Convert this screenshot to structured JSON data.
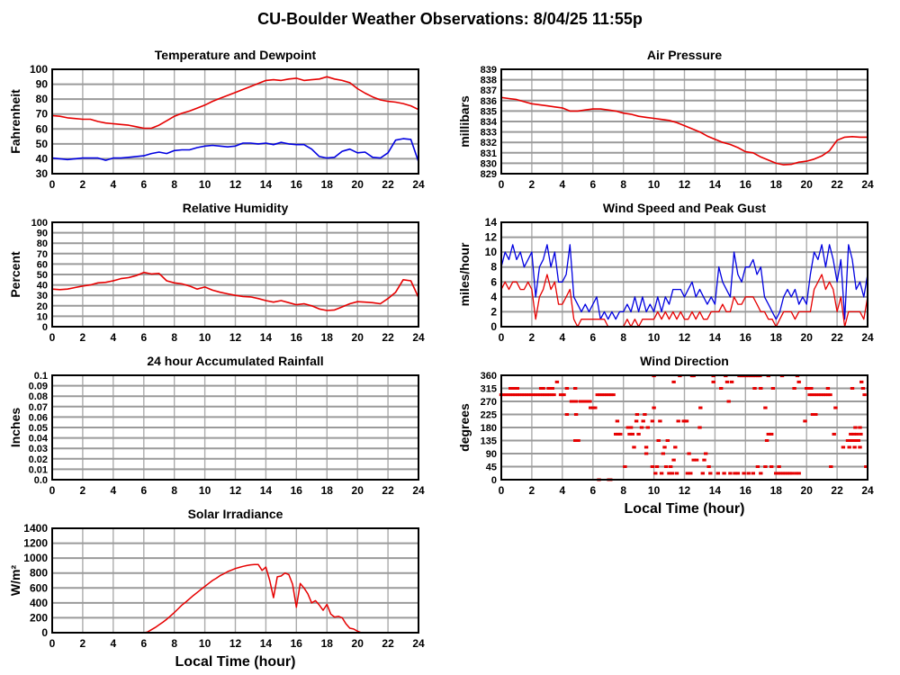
{
  "page_title": "CU-Boulder Weather Observations: 8/04/25 11:55p",
  "colors": {
    "red": "#e60000",
    "blue": "#0000e0",
    "grid_h": "#9a9a9a",
    "grid_v": "#ababab",
    "axis": "#000000"
  },
  "x_axis": {
    "min": 0,
    "max": 24,
    "ticks": [
      0,
      2,
      4,
      6,
      8,
      10,
      12,
      14,
      16,
      18,
      20,
      22,
      24
    ]
  },
  "chart_data": [
    {
      "id": "temperature-dewpoint",
      "type": "line",
      "title": "Temperature and Dewpoint",
      "ylabel": "Fahrenheit",
      "xlabel": "",
      "ylim": [
        30,
        100
      ],
      "yticks": [
        30,
        40,
        50,
        60,
        70,
        80,
        90,
        100
      ],
      "ytick_labels": [
        "30",
        "40",
        "50",
        "60",
        "70",
        "80",
        "90",
        "100"
      ],
      "series": [
        {
          "name": "temperature",
          "color": "#e60000",
          "width": 1.6,
          "x_start": 0,
          "x_step": 0.5,
          "values": [
            69,
            68.5,
            67.5,
            67,
            66.5,
            66.5,
            65,
            64,
            63.5,
            63,
            62.5,
            61.5,
            60.5,
            60.5,
            62.5,
            65.5,
            68.5,
            70.5,
            72,
            74,
            76,
            78.5,
            80.5,
            82.5,
            84.5,
            86.5,
            88.5,
            90.5,
            92.5,
            93,
            92.5,
            93.5,
            94,
            92.5,
            93,
            93.5,
            95,
            93.5,
            92.5,
            91,
            87,
            84,
            81.5,
            79.5,
            78.5,
            78,
            77,
            75.5,
            73
          ]
        },
        {
          "name": "dewpoint",
          "color": "#0000e0",
          "width": 1.6,
          "x_start": 0,
          "x_step": 0.5,
          "values": [
            40.5,
            40,
            39.5,
            40,
            40.5,
            40.5,
            40.5,
            39,
            40.5,
            40.5,
            41,
            41.5,
            42,
            43.5,
            44.5,
            43.5,
            45.5,
            46,
            46,
            47.5,
            48.5,
            49,
            48.5,
            48,
            48.5,
            50.5,
            50.5,
            50,
            50.5,
            49.5,
            51,
            50,
            49.5,
            49.5,
            46.5,
            41.5,
            40.5,
            41,
            45,
            46.5,
            44,
            44.5,
            41,
            40.5,
            44,
            52.5,
            53.5,
            53,
            38
          ]
        }
      ]
    },
    {
      "id": "air-pressure",
      "type": "line",
      "title": "Air Pressure",
      "ylabel": "millibars",
      "xlabel": "",
      "ylim": [
        829,
        839
      ],
      "yticks": [
        829,
        830,
        831,
        832,
        833,
        834,
        835,
        836,
        837,
        838,
        839
      ],
      "ytick_labels": [
        "829",
        "830",
        "831",
        "832",
        "833",
        "834",
        "835",
        "836",
        "837",
        "838",
        "839"
      ],
      "series": [
        {
          "name": "pressure",
          "color": "#e60000",
          "width": 1.6,
          "x_start": 0,
          "x_step": 0.5,
          "values": [
            836.3,
            836.2,
            836.1,
            835.9,
            835.7,
            835.6,
            835.5,
            835.4,
            835.3,
            835.0,
            835.0,
            835.1,
            835.2,
            835.2,
            835.1,
            835.0,
            834.8,
            834.7,
            834.5,
            834.4,
            834.3,
            834.2,
            834.1,
            833.9,
            833.6,
            833.3,
            833.0,
            832.6,
            832.3,
            832.0,
            831.8,
            831.5,
            831.1,
            831.0,
            830.6,
            830.3,
            830.0,
            829.85,
            829.9,
            830.1,
            830.2,
            830.4,
            830.7,
            831.2,
            832.2,
            832.5,
            832.55,
            832.5,
            832.5
          ]
        }
      ]
    },
    {
      "id": "relative-humidity",
      "type": "line",
      "title": "Relative Humidity",
      "ylabel": "Percent",
      "xlabel": "",
      "ylim": [
        0,
        100
      ],
      "yticks": [
        0,
        10,
        20,
        30,
        40,
        50,
        60,
        70,
        80,
        90,
        100
      ],
      "ytick_labels": [
        "0",
        "10",
        "20",
        "30",
        "40",
        "50",
        "60",
        "70",
        "80",
        "90",
        "100"
      ],
      "series": [
        {
          "name": "humidity",
          "color": "#e60000",
          "width": 1.6,
          "x_start": 0,
          "x_step": 0.5,
          "values": [
            36,
            35.5,
            36,
            37.5,
            39,
            40,
            42,
            42.5,
            44,
            46,
            47,
            49,
            52,
            50.5,
            51,
            44,
            42,
            41,
            39,
            36,
            38,
            35,
            33,
            31.5,
            30,
            29,
            28.5,
            27,
            25,
            23.5,
            25,
            23,
            21,
            22,
            20,
            17,
            15.5,
            16,
            19,
            22,
            24,
            23.5,
            23,
            22,
            27,
            33,
            45,
            44,
            28
          ]
        }
      ]
    },
    {
      "id": "wind-speed-gust",
      "type": "line",
      "title": "Wind Speed and Peak Gust",
      "ylabel": "miles/hour",
      "xlabel": "",
      "ylim": [
        0,
        14
      ],
      "yticks": [
        0,
        2,
        4,
        6,
        8,
        10,
        12,
        14
      ],
      "ytick_labels": [
        "0",
        "2",
        "4",
        "6",
        "8",
        "10",
        "12",
        "14"
      ],
      "series": [
        {
          "name": "peak-gust",
          "color": "#0000e0",
          "width": 1.3,
          "x_start": 0,
          "x_step": 0.25,
          "values": [
            8,
            10,
            9,
            11,
            9,
            10,
            8,
            9,
            10,
            4,
            8,
            9,
            11,
            8,
            10,
            6,
            6,
            7,
            11,
            4,
            3,
            2,
            3,
            2,
            3,
            4,
            1,
            2,
            1,
            2,
            1,
            2,
            2,
            3,
            2,
            4,
            2,
            4,
            2,
            3,
            2,
            4,
            2,
            4,
            3,
            5,
            5,
            5,
            4,
            5,
            6,
            4,
            5,
            4,
            3,
            4,
            3,
            8,
            6,
            5,
            4,
            10,
            7,
            6,
            8,
            8,
            9,
            7,
            8,
            4,
            3,
            2,
            1,
            2,
            4,
            5,
            4,
            5,
            3,
            4,
            3,
            7,
            10,
            9,
            11,
            8,
            11,
            9,
            6,
            9,
            1,
            11,
            9,
            5,
            6,
            4,
            7
          ]
        },
        {
          "name": "wind-speed",
          "color": "#e60000",
          "width": 1.3,
          "x_start": 0,
          "x_step": 0.25,
          "values": [
            5,
            6,
            5,
            6,
            6,
            5,
            5,
            6,
            5,
            1,
            4,
            5,
            7,
            5,
            6,
            3,
            3,
            4,
            5,
            1,
            0,
            1,
            1,
            1,
            1,
            1,
            1,
            1,
            0,
            0,
            0,
            0,
            0,
            1,
            0,
            1,
            0,
            1,
            1,
            1,
            1,
            2,
            1,
            2,
            1,
            2,
            1,
            2,
            1,
            1,
            2,
            1,
            2,
            1,
            1,
            2,
            2,
            2,
            3,
            2,
            2,
            4,
            3,
            3,
            4,
            4,
            4,
            3,
            2,
            2,
            1,
            1,
            0,
            1,
            2,
            2,
            2,
            1,
            2,
            2,
            2,
            2,
            5,
            6,
            7,
            5,
            6,
            5,
            2,
            4,
            0,
            2,
            2,
            2,
            2,
            1,
            4
          ]
        }
      ]
    },
    {
      "id": "accumulated-rainfall",
      "type": "line",
      "title": "24 hour Accumulated Rainfall",
      "ylabel": "Inches",
      "xlabel": "",
      "ylim": [
        0,
        0.1
      ],
      "yticks": [
        0,
        0.01,
        0.02,
        0.03,
        0.04,
        0.05,
        0.06,
        0.07,
        0.08,
        0.09,
        0.1
      ],
      "ytick_labels": [
        "0.0",
        "0.01",
        "0.02",
        "0.03",
        "0.04",
        "0.05",
        "0.06",
        "0.07",
        "0.08",
        "0.09",
        "0.1"
      ],
      "series": [
        {
          "name": "rainfall",
          "color": "#cc0000",
          "width": 2,
          "x_start": 0,
          "x_step": 24,
          "values": [
            0,
            0
          ]
        }
      ]
    },
    {
      "id": "wind-direction",
      "type": "scatter",
      "title": "Wind Direction",
      "ylabel": "degrees",
      "xlabel": "Local Time (hour)",
      "ylim": [
        0,
        360
      ],
      "yticks": [
        0,
        45,
        90,
        135,
        180,
        225,
        270,
        315,
        360
      ],
      "ytick_labels": [
        "0",
        "45",
        "90",
        "135",
        "180",
        "225",
        "270",
        "315",
        "360"
      ],
      "marker_color": "#e60000",
      "points_by_degree": [
        {
          "deg": 358,
          "x": [
            10.0,
            11.7,
            12.5,
            12.6,
            13.9,
            14.7,
            15.6,
            15.75,
            15.9,
            16.05,
            16.2,
            16.35,
            16.5,
            16.65,
            16.8,
            16.95,
            17.5,
            18.4,
            19.4
          ]
        },
        {
          "deg": 337,
          "x": [
            3.65,
            11.3,
            13.9,
            14.8,
            15.1,
            19.5,
            23.6
          ]
        },
        {
          "deg": 315,
          "x": [
            0.6,
            0.75,
            0.95,
            1.05,
            2.6,
            2.75,
            3.1,
            3.2,
            3.35,
            4.3,
            4.85,
            14.4,
            16.6,
            17.0,
            17.8,
            19.2,
            20.0,
            20.15,
            20.3,
            21.4,
            23.0,
            23.7
          ]
        },
        {
          "deg": 293,
          "x": [
            0,
            0.15,
            0.3,
            0.45,
            0.6,
            0.75,
            0.9,
            1.05,
            1.2,
            1.35,
            1.5,
            1.65,
            1.8,
            1.95,
            2.1,
            2.25,
            2.4,
            2.55,
            2.7,
            2.85,
            3.0,
            3.15,
            3.3,
            3.45,
            3.9,
            4.0,
            4.1,
            6.3,
            6.45,
            6.6,
            6.75,
            6.9,
            7.05,
            7.2,
            7.35,
            20.2,
            20.35,
            20.5,
            20.65,
            20.8,
            20.95,
            21.1,
            21.25,
            21.4,
            21.55,
            23.8
          ]
        },
        {
          "deg": 270,
          "x": [
            4.6,
            4.75,
            4.9,
            5.2,
            5.35,
            5.5,
            5.65,
            5.8,
            14.9
          ]
        },
        {
          "deg": 248,
          "x": [
            5.85,
            6.0,
            6.15,
            10.0,
            13.05,
            17.3,
            21.9
          ]
        },
        {
          "deg": 225,
          "x": [
            4.3,
            4.9,
            8.9,
            9.4,
            20.4,
            20.6
          ]
        },
        {
          "deg": 202,
          "x": [
            7.6,
            8.85,
            9.3,
            9.9,
            10.4,
            11.6,
            11.95,
            12.05,
            12.15,
            19.9
          ]
        },
        {
          "deg": 180,
          "x": [
            8.3,
            8.5,
            9.2,
            9.6,
            13.0,
            23.2,
            23.5
          ]
        },
        {
          "deg": 157,
          "x": [
            7.5,
            7.65,
            7.8,
            8.4,
            8.6,
            9.0,
            17.5,
            17.7,
            21.8,
            22.9,
            23.1,
            23.3,
            23.55
          ]
        },
        {
          "deg": 135,
          "x": [
            4.85,
            4.95,
            5.05,
            10.3,
            10.9,
            17.4,
            22.7,
            22.8,
            22.9,
            23.0,
            23.2,
            23.4
          ]
        },
        {
          "deg": 112,
          "x": [
            8.7,
            9.5,
            10.7,
            11.4,
            22.4,
            22.8,
            23.15,
            23.5
          ]
        },
        {
          "deg": 90,
          "x": [
            9.5,
            10.6,
            12.3,
            13.4
          ]
        },
        {
          "deg": 68,
          "x": [
            11.3,
            12.6,
            12.8,
            13.3
          ]
        },
        {
          "deg": 45,
          "x": [
            8.1,
            9.9,
            10.2,
            10.8,
            11.1,
            13.6,
            16.8,
            17.3,
            17.7,
            18.2,
            21.6,
            23.9
          ]
        },
        {
          "deg": 22,
          "x": [
            10.1,
            10.5,
            11.0,
            11.2,
            11.5,
            12.2,
            12.4,
            13.2,
            13.7,
            14.2,
            14.6,
            15.0,
            15.3,
            15.5,
            15.9,
            16.2,
            16.5,
            17.0,
            18.0,
            18.15,
            18.3,
            18.45,
            18.6,
            18.75,
            18.9,
            19.05,
            19.3,
            19.5
          ]
        },
        {
          "deg": 0,
          "x": [
            6.4,
            7.05,
            7.15
          ]
        }
      ]
    },
    {
      "id": "solar-irradiance",
      "type": "line",
      "title": "Solar Irradiance",
      "ylabel": "W/m²",
      "xlabel": "Local Time (hour)",
      "ylim": [
        0,
        1400
      ],
      "yticks": [
        0,
        200,
        400,
        600,
        800,
        1000,
        1200,
        1400
      ],
      "ytick_labels": [
        "0",
        "200",
        "400",
        "600",
        "800",
        "1000",
        "1200",
        "1400"
      ],
      "series": [
        {
          "name": "irradiance",
          "color": "#e60000",
          "width": 1.5,
          "x_start": 0,
          "x_step": 0.25,
          "values": [
            0,
            0,
            0,
            0,
            0,
            0,
            0,
            0,
            0,
            0,
            0,
            0,
            0,
            0,
            0,
            0,
            0,
            0,
            0,
            0,
            0,
            0,
            0,
            0,
            0,
            10,
            40,
            70,
            105,
            140,
            180,
            225,
            270,
            320,
            370,
            410,
            455,
            500,
            540,
            580,
            620,
            660,
            700,
            730,
            765,
            790,
            820,
            840,
            860,
            875,
            890,
            900,
            910,
            915,
            915,
            835,
            880,
            700,
            470,
            750,
            760,
            800,
            780,
            650,
            340,
            660,
            600,
            520,
            400,
            430,
            370,
            300,
            380,
            250,
            210,
            220,
            200,
            120,
            60,
            50,
            20,
            0,
            0,
            0,
            0,
            0,
            0,
            0,
            0,
            0,
            0,
            0,
            0,
            0,
            0,
            0,
            0
          ]
        }
      ]
    }
  ]
}
